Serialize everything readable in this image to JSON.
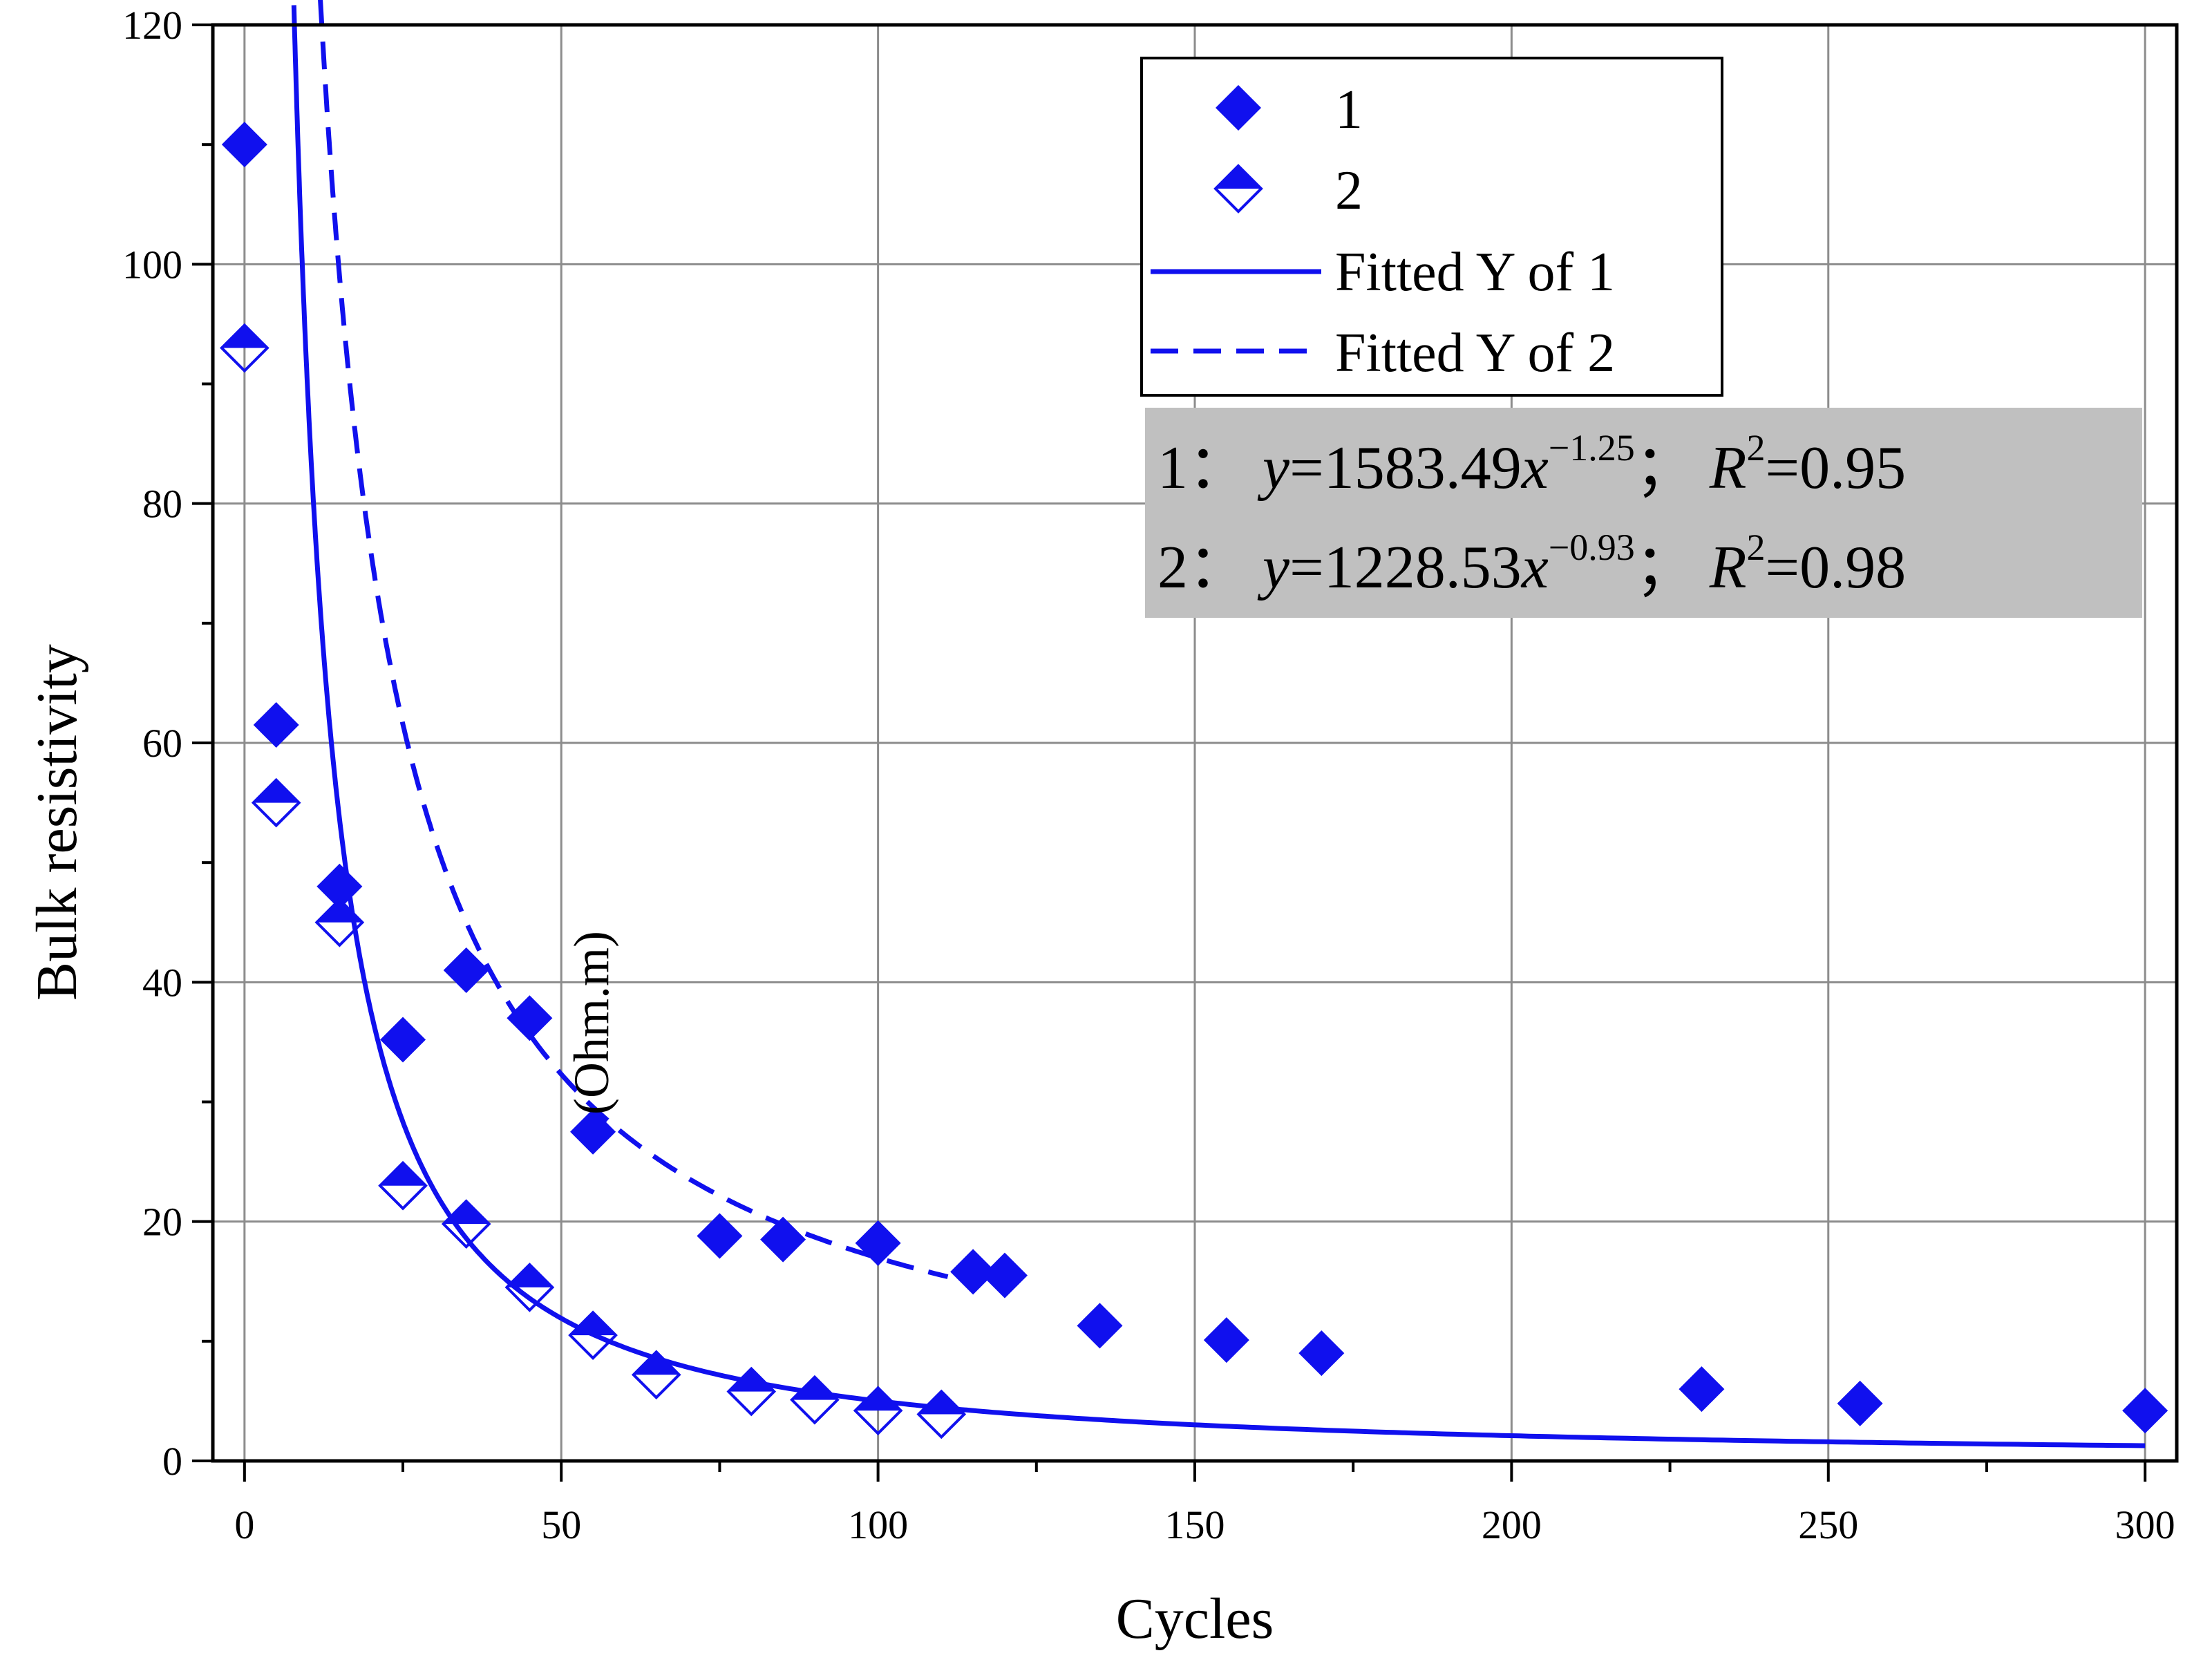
{
  "chart_data": {
    "type": "scatter",
    "title": "",
    "xlabel": "Cycles",
    "ylabel": "Bulk resistivity",
    "ylabel_unit": "(Ohm.m)",
    "xlim": [
      -5,
      305
    ],
    "ylim": [
      0,
      120
    ],
    "xticks": [
      0,
      50,
      100,
      150,
      200,
      250,
      300
    ],
    "yticks": [
      0,
      20,
      40,
      60,
      80,
      100,
      120
    ],
    "grid": true,
    "colors": {
      "series": "#1010ee",
      "box": "#c0c0c0",
      "grid": "#8c8c8c"
    },
    "series": [
      {
        "name": "1",
        "marker": "filled-diamond",
        "x": [
          0,
          5,
          15,
          25,
          35,
          45,
          55,
          75,
          85,
          100,
          115,
          120,
          135,
          155,
          170,
          230,
          255,
          300
        ],
        "y": [
          110,
          61.5,
          48,
          35.2,
          41,
          37,
          27.5,
          18.8,
          18.5,
          18.2,
          15.8,
          15.5,
          11.3,
          10.1,
          9,
          6,
          4.8,
          4.2
        ]
      },
      {
        "name": "2",
        "marker": "half-filled-diamond",
        "x": [
          0,
          5,
          15,
          25,
          35,
          45,
          55,
          65,
          80,
          90,
          100,
          110
        ],
        "y": [
          93,
          55,
          45,
          23,
          19.8,
          14.5,
          10.5,
          7.2,
          5.8,
          5.1,
          4.2,
          3.9
        ]
      }
    ],
    "fits": [
      {
        "name": "Fitted Y of 1",
        "style": "solid",
        "a": 1583.49,
        "b": -1.25,
        "r2": 0.95,
        "x_range": [
          1.7,
          300
        ]
      },
      {
        "name": "Fitted Y of 2",
        "style": "dashed",
        "a": 1228.53,
        "b": -0.93,
        "r2": 0.98,
        "x_range": [
          5,
          111
        ]
      }
    ],
    "legend": {
      "position": "top-right",
      "entries": [
        "1",
        "2",
        "Fitted Y of 1",
        "Fitted Y of 2"
      ]
    },
    "annotation": {
      "lines": [
        {
          "id": "1：",
          "y": "y",
          "eq": "=1583.49",
          "x": "x",
          "exp": "−1.25",
          "sep": "；",
          "r": "R",
          "sq": "2",
          "r2val": "=0.95"
        },
        {
          "id": "2：",
          "y": "y",
          "eq": "=1228.53",
          "x": "x",
          "exp": "−0.93",
          "sep": "；",
          "r": "R",
          "sq": "2",
          "r2val": "=0.98"
        }
      ]
    }
  }
}
